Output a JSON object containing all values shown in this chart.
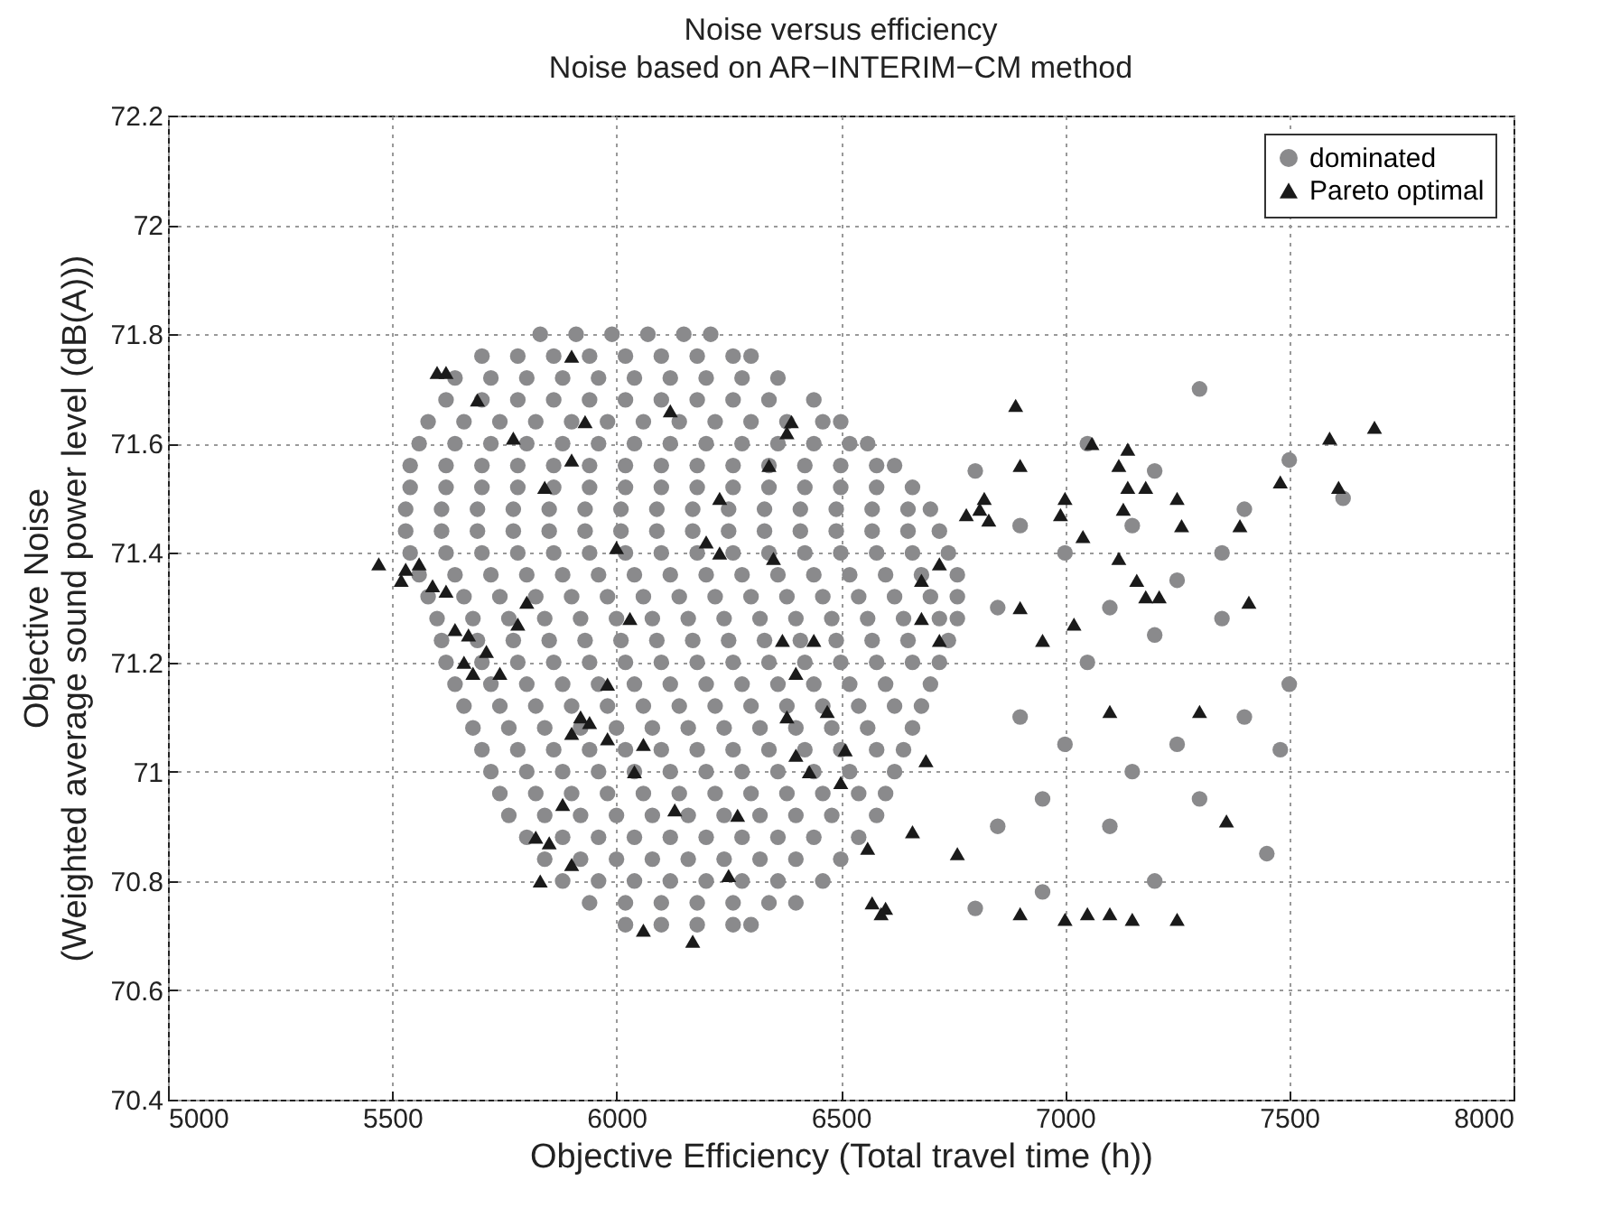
{
  "chart_data": {
    "type": "scatter",
    "title": "Noise versus efficiency",
    "subtitle": "Noise based on AR−INTERIM−CM method",
    "xlabel": "Objective Efficiency (Total travel time (h))",
    "ylabel": "Objective Noise\n(Weighted average sound power level (dB(A)))",
    "xlim": [
      5000,
      8000
    ],
    "xticks": [
      5000,
      5500,
      6000,
      6500,
      7000,
      7500,
      8000
    ],
    "ylim": [
      70.4,
      72.2
    ],
    "yticks": [
      70.4,
      70.6,
      70.8,
      71,
      71.2,
      71.4,
      71.6,
      71.8,
      72,
      72.2
    ],
    "grid": true,
    "legend": "top right",
    "series": [
      {
        "name": "dominated",
        "color": "#8a8a8c",
        "marker": "circle",
        "x": [
          5830,
          5910,
          5990,
          6070,
          6150,
          6210,
          5700,
          5780,
          5860,
          5940,
          6020,
          6100,
          6180,
          6260,
          6300,
          5640,
          5720,
          5800,
          5880,
          5960,
          6040,
          6120,
          6200,
          6280,
          6360,
          5620,
          5700,
          5780,
          5860,
          5940,
          6020,
          6100,
          6180,
          6260,
          6340,
          6440,
          5580,
          5660,
          5740,
          5820,
          5900,
          5980,
          6060,
          6140,
          6220,
          6300,
          6380,
          6460,
          6500,
          5560,
          5640,
          5720,
          5800,
          5880,
          5960,
          6040,
          6120,
          6200,
          6280,
          6360,
          6440,
          6520,
          6560,
          5540,
          5620,
          5700,
          5780,
          5860,
          5940,
          6020,
          6100,
          6180,
          6260,
          6340,
          6420,
          6500,
          6580,
          6620,
          5540,
          5620,
          5700,
          5780,
          5860,
          5940,
          6020,
          6100,
          6180,
          6260,
          6340,
          6420,
          6500,
          6580,
          6660,
          5530,
          5610,
          5690,
          5770,
          5850,
          5930,
          6010,
          6090,
          6170,
          6250,
          6330,
          6410,
          6490,
          6570,
          6650,
          6700,
          5530,
          5610,
          5690,
          5770,
          5850,
          5930,
          6010,
          6090,
          6170,
          6250,
          6330,
          6410,
          6490,
          6570,
          6650,
          6720,
          5540,
          5620,
          5700,
          5780,
          5860,
          5940,
          6020,
          6100,
          6180,
          6260,
          6340,
          6420,
          6500,
          6580,
          6660,
          6740,
          5560,
          5640,
          5720,
          5800,
          5880,
          5960,
          6040,
          6120,
          6200,
          6280,
          6360,
          6440,
          6520,
          6600,
          6680,
          6760,
          5580,
          5660,
          5740,
          5820,
          5900,
          5980,
          6060,
          6140,
          6220,
          6300,
          6380,
          6460,
          6540,
          6620,
          6700,
          6760,
          5600,
          5680,
          5760,
          5840,
          5920,
          6000,
          6080,
          6160,
          6240,
          6320,
          6400,
          6480,
          6560,
          6640,
          6720,
          6760,
          5610,
          5690,
          5770,
          5850,
          5930,
          6010,
          6090,
          6170,
          6250,
          6330,
          6410,
          6490,
          6570,
          6650,
          6740,
          5620,
          5700,
          5780,
          5860,
          5940,
          6020,
          6100,
          6180,
          6260,
          6340,
          6420,
          6500,
          6580,
          6660,
          6720,
          5640,
          5720,
          5800,
          5880,
          5960,
          6040,
          6120,
          6200,
          6280,
          6360,
          6440,
          6520,
          6600,
          6700,
          5660,
          5740,
          5820,
          5900,
          5980,
          6060,
          6140,
          6220,
          6300,
          6380,
          6460,
          6540,
          6620,
          6680,
          5680,
          5760,
          5840,
          5920,
          6000,
          6080,
          6160,
          6240,
          6320,
          6400,
          6480,
          6560,
          6660,
          5700,
          5780,
          5860,
          5940,
          6020,
          6100,
          6180,
          6260,
          6340,
          6420,
          6500,
          6580,
          6640,
          5720,
          5800,
          5880,
          5960,
          6040,
          6120,
          6200,
          6280,
          6360,
          6440,
          6520,
          6620,
          5740,
          5820,
          5900,
          5980,
          6060,
          6140,
          6220,
          6300,
          6380,
          6460,
          6540,
          6600,
          5760,
          5840,
          5920,
          6000,
          6080,
          6160,
          6240,
          6320,
          6400,
          6480,
          6580,
          5800,
          5880,
          5960,
          6040,
          6120,
          6200,
          6280,
          6360,
          6440,
          6540,
          5840,
          5920,
          6000,
          6080,
          6160,
          6240,
          6320,
          6400,
          6500,
          5880,
          5960,
          6040,
          6120,
          6200,
          6280,
          6360,
          6460,
          5940,
          6020,
          6100,
          6180,
          6260,
          6340,
          6400,
          6020,
          6100,
          6180,
          6260,
          6300,
          6800,
          6850,
          6900,
          6950,
          7000,
          7050,
          7100,
          7150,
          7200,
          7250,
          7300,
          7350,
          7400,
          7450,
          7480,
          7500,
          7500,
          7620,
          7350,
          7200,
          6950,
          6800,
          7050,
          7150,
          6900,
          7250,
          6850,
          7000,
          7100,
          7300,
          7200,
          7400
        ],
        "values": [
          71.8,
          71.8,
          71.8,
          71.8,
          71.8,
          71.8,
          71.76,
          71.76,
          71.76,
          71.76,
          71.76,
          71.76,
          71.76,
          71.76,
          71.76,
          71.72,
          71.72,
          71.72,
          71.72,
          71.72,
          71.72,
          71.72,
          71.72,
          71.72,
          71.72,
          71.68,
          71.68,
          71.68,
          71.68,
          71.68,
          71.68,
          71.68,
          71.68,
          71.68,
          71.68,
          71.68,
          71.64,
          71.64,
          71.64,
          71.64,
          71.64,
          71.64,
          71.64,
          71.64,
          71.64,
          71.64,
          71.64,
          71.64,
          71.64,
          71.6,
          71.6,
          71.6,
          71.6,
          71.6,
          71.6,
          71.6,
          71.6,
          71.6,
          71.6,
          71.6,
          71.6,
          71.6,
          71.6,
          71.56,
          71.56,
          71.56,
          71.56,
          71.56,
          71.56,
          71.56,
          71.56,
          71.56,
          71.56,
          71.56,
          71.56,
          71.56,
          71.56,
          71.56,
          71.52,
          71.52,
          71.52,
          71.52,
          71.52,
          71.52,
          71.52,
          71.52,
          71.52,
          71.52,
          71.52,
          71.52,
          71.52,
          71.52,
          71.52,
          71.48,
          71.48,
          71.48,
          71.48,
          71.48,
          71.48,
          71.48,
          71.48,
          71.48,
          71.48,
          71.48,
          71.48,
          71.48,
          71.48,
          71.48,
          71.48,
          71.44,
          71.44,
          71.44,
          71.44,
          71.44,
          71.44,
          71.44,
          71.44,
          71.44,
          71.44,
          71.44,
          71.44,
          71.44,
          71.44,
          71.44,
          71.44,
          71.4,
          71.4,
          71.4,
          71.4,
          71.4,
          71.4,
          71.4,
          71.4,
          71.4,
          71.4,
          71.4,
          71.4,
          71.4,
          71.4,
          71.4,
          71.4,
          71.36,
          71.36,
          71.36,
          71.36,
          71.36,
          71.36,
          71.36,
          71.36,
          71.36,
          71.36,
          71.36,
          71.36,
          71.36,
          71.36,
          71.36,
          71.36,
          71.32,
          71.32,
          71.32,
          71.32,
          71.32,
          71.32,
          71.32,
          71.32,
          71.32,
          71.32,
          71.32,
          71.32,
          71.32,
          71.32,
          71.32,
          71.32,
          71.28,
          71.28,
          71.28,
          71.28,
          71.28,
          71.28,
          71.28,
          71.28,
          71.28,
          71.28,
          71.28,
          71.28,
          71.28,
          71.28,
          71.28,
          71.28,
          71.24,
          71.24,
          71.24,
          71.24,
          71.24,
          71.24,
          71.24,
          71.24,
          71.24,
          71.24,
          71.24,
          71.24,
          71.24,
          71.24,
          71.24,
          71.2,
          71.2,
          71.2,
          71.2,
          71.2,
          71.2,
          71.2,
          71.2,
          71.2,
          71.2,
          71.2,
          71.2,
          71.2,
          71.2,
          71.2,
          71.16,
          71.16,
          71.16,
          71.16,
          71.16,
          71.16,
          71.16,
          71.16,
          71.16,
          71.16,
          71.16,
          71.16,
          71.16,
          71.16,
          71.12,
          71.12,
          71.12,
          71.12,
          71.12,
          71.12,
          71.12,
          71.12,
          71.12,
          71.12,
          71.12,
          71.12,
          71.12,
          71.12,
          71.08,
          71.08,
          71.08,
          71.08,
          71.08,
          71.08,
          71.08,
          71.08,
          71.08,
          71.08,
          71.08,
          71.08,
          71.08,
          71.04,
          71.04,
          71.04,
          71.04,
          71.04,
          71.04,
          71.04,
          71.04,
          71.04,
          71.04,
          71.04,
          71.04,
          71.04,
          71,
          71,
          71,
          71,
          71,
          71,
          71,
          71,
          71,
          71,
          71,
          71,
          70.96,
          70.96,
          70.96,
          70.96,
          70.96,
          70.96,
          70.96,
          70.96,
          70.96,
          70.96,
          70.96,
          70.96,
          70.92,
          70.92,
          70.92,
          70.92,
          70.92,
          70.92,
          70.92,
          70.92,
          70.92,
          70.92,
          70.92,
          70.88,
          70.88,
          70.88,
          70.88,
          70.88,
          70.88,
          70.88,
          70.88,
          70.88,
          70.88,
          70.84,
          70.84,
          70.84,
          70.84,
          70.84,
          70.84,
          70.84,
          70.84,
          70.84,
          70.8,
          70.8,
          70.8,
          70.8,
          70.8,
          70.8,
          70.8,
          70.8,
          70.76,
          70.76,
          70.76,
          70.76,
          70.76,
          70.76,
          70.76,
          70.72,
          70.72,
          70.72,
          70.72,
          70.72,
          71.55,
          71.3,
          71.1,
          70.95,
          71.4,
          71.2,
          70.9,
          71,
          71.25,
          71.05,
          71.7,
          71.4,
          71.48,
          70.85,
          71.04,
          71.16,
          71.57,
          71.5,
          71.28,
          70.8,
          70.78,
          70.75,
          71.6,
          71.45,
          71.45,
          71.35,
          70.9,
          71.05,
          71.3,
          70.95,
          71.55,
          71.1
        ]
      },
      {
        "name": "Pareto optimal",
        "color": "#1a1a1a",
        "marker": "triangle",
        "x": [
          5470,
          5520,
          5530,
          5560,
          5590,
          5620,
          5600,
          5620,
          5690,
          5770,
          5840,
          5900,
          5930,
          5900,
          6120,
          6000,
          6380,
          6390,
          6340,
          6230,
          6200,
          6230,
          6350,
          5640,
          5670,
          5660,
          5680,
          5710,
          5740,
          5800,
          5780,
          6030,
          5980,
          5920,
          5900,
          5940,
          5980,
          6060,
          6040,
          5880,
          5820,
          5850,
          5900,
          5830,
          6060,
          6170,
          6130,
          6270,
          6250,
          6370,
          6400,
          6440,
          6380,
          6400,
          6470,
          6430,
          6500,
          6510,
          6560,
          6570,
          6590,
          6600,
          6660,
          6690,
          6720,
          6720,
          6680,
          6680,
          6760,
          6900,
          6890,
          6900,
          6780,
          6810,
          6830,
          6820,
          6900,
          6950,
          6990,
          7000,
          7040,
          7060,
          7140,
          7120,
          7140,
          7130,
          7180,
          7120,
          7160,
          7180,
          7210,
          7250,
          7260,
          7100,
          7020,
          7000,
          7050,
          7100,
          7150,
          7250,
          7300,
          7360,
          7390,
          7410,
          7480,
          7590,
          7690,
          7610
        ],
        "values": [
          71.38,
          71.35,
          71.37,
          71.38,
          71.34,
          71.33,
          71.73,
          71.73,
          71.68,
          71.61,
          71.52,
          71.57,
          71.64,
          71.76,
          71.66,
          71.41,
          71.62,
          71.64,
          71.56,
          71.5,
          71.42,
          71.4,
          71.39,
          71.26,
          71.25,
          71.2,
          71.18,
          71.22,
          71.18,
          71.31,
          71.27,
          71.28,
          71.16,
          71.1,
          71.07,
          71.09,
          71.06,
          71.05,
          71,
          70.94,
          70.88,
          70.87,
          70.83,
          70.8,
          70.71,
          70.69,
          70.93,
          70.92,
          70.81,
          71.24,
          71.18,
          71.24,
          71.1,
          71.03,
          71.11,
          71,
          70.98,
          71.04,
          70.86,
          70.76,
          70.74,
          70.75,
          70.89,
          71.02,
          71.38,
          71.24,
          71.28,
          71.35,
          70.85,
          70.74,
          71.67,
          71.56,
          71.47,
          71.48,
          71.46,
          71.5,
          71.3,
          71.24,
          71.47,
          71.5,
          71.43,
          71.6,
          71.59,
          71.56,
          71.52,
          71.48,
          71.52,
          71.39,
          71.35,
          71.32,
          71.32,
          71.5,
          71.45,
          71.11,
          71.27,
          70.73,
          70.74,
          70.74,
          70.73,
          70.73,
          71.11,
          70.91,
          71.45,
          71.31,
          71.53,
          71.61,
          71.63,
          71.52
        ]
      }
    ]
  }
}
